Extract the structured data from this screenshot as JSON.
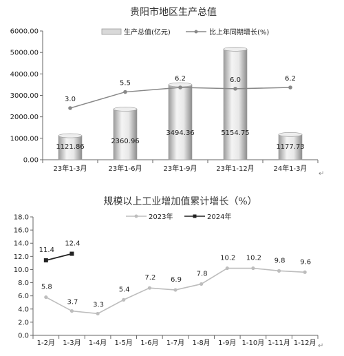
{
  "chart_data": [
    {
      "type": "bar+line",
      "title": "贵阳市地区生产总值",
      "categories": [
        "23年1-3月",
        "23年1-6月",
        "23年1-9月",
        "23年1-12月",
        "24年1-3月"
      ],
      "ylim": [
        0,
        6000
      ],
      "yticks": [
        "0.00",
        "1000.00",
        "2000.00",
        "3000.00",
        "4000.00",
        "5000.00",
        "6000.00"
      ],
      "legend_placement": "top-right",
      "series": [
        {
          "name": "生产总值(亿元)",
          "type": "bar",
          "values": [
            1121.86,
            2360.96,
            3494.36,
            5154.75,
            1177.73
          ],
          "labels": [
            "1121.86",
            "2360.96",
            "3494.36",
            "5154.75",
            "1177.73"
          ]
        },
        {
          "name": "比上年同期增长(%)",
          "type": "line",
          "values": [
            3.0,
            5.5,
            6.2,
            6.0,
            6.2
          ],
          "labels": [
            "3.0",
            "5.5",
            "6.2",
            "6.0",
            "6.2"
          ]
        }
      ]
    },
    {
      "type": "line",
      "title": "规模以上工业增加值累计增长（%）",
      "categories": [
        "1-2月",
        "1-3月",
        "1-4月",
        "1-5月",
        "1-6月",
        "1-7月",
        "1-8月",
        "1-9月",
        "1-10月",
        "1-11月",
        "1-12月"
      ],
      "ylim": [
        0,
        18
      ],
      "yticks": [
        "0.0",
        "2.0",
        "4.0",
        "6.0",
        "8.0",
        "10.0",
        "12.0",
        "14.0",
        "16.0",
        "18.0"
      ],
      "legend_placement": "top",
      "series": [
        {
          "name": "2023年",
          "color": "#bdbdbd",
          "values": [
            5.8,
            3.7,
            3.3,
            5.4,
            7.2,
            6.9,
            7.8,
            10.2,
            10.2,
            9.8,
            9.6
          ],
          "labels": [
            "5.8",
            "3.7",
            "3.3",
            "5.4",
            "7.2",
            "6.9",
            "7.8",
            "10.2",
            "10.2",
            "9.8",
            "9.6"
          ]
        },
        {
          "name": "2024年",
          "color": "#222222",
          "values": [
            11.4,
            12.4,
            null,
            null,
            null,
            null,
            null,
            null,
            null,
            null,
            null
          ],
          "labels": [
            "11.4",
            "12.4",
            "",
            "",
            "",
            "",
            "",
            "",
            "",
            "",
            ""
          ]
        }
      ]
    }
  ],
  "paragraph_mark": "↵"
}
